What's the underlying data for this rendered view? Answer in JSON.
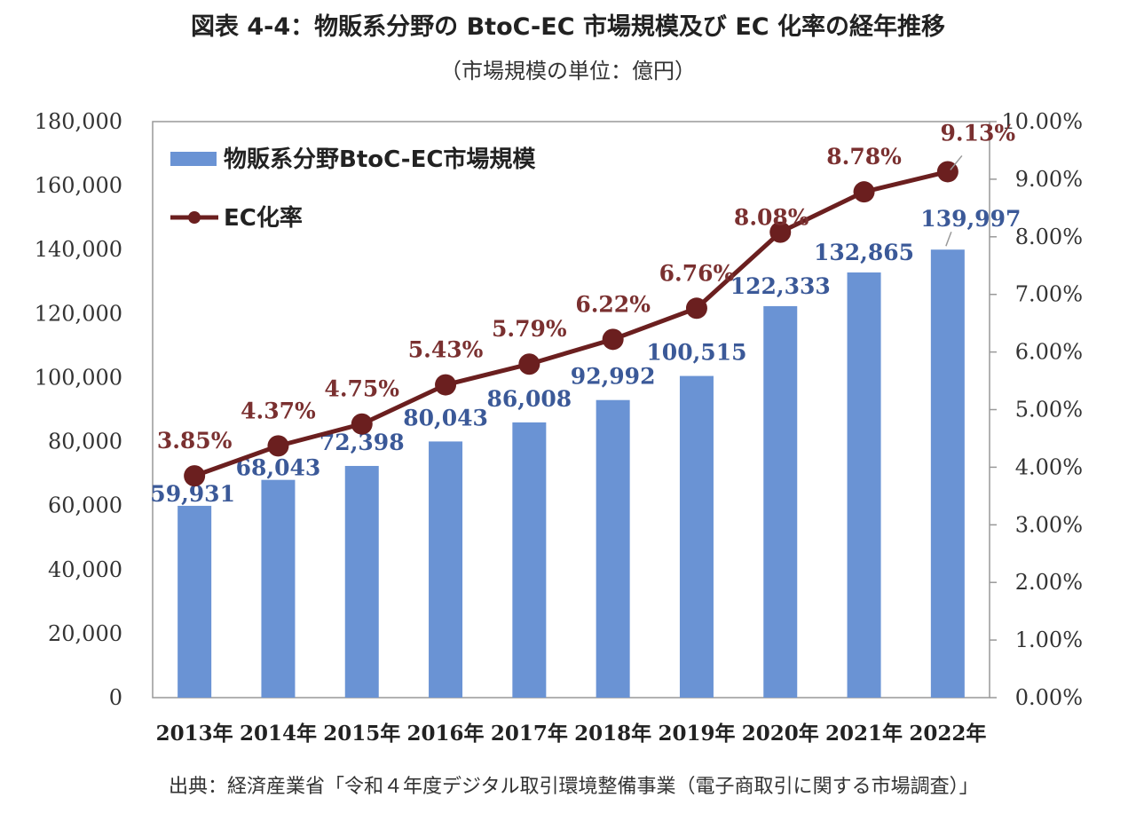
{
  "title": "図表 4-4：物販系分野の BtoC-EC 市場規模及び EC 化率の経年推移",
  "subtitle": "（市場規模の単位：億円）",
  "source": "出典：経済産業省「令和４年度デジタル取引環境整備事業（電子商取引に関する市場調査）」",
  "chart_data": {
    "type": "bar",
    "categories": [
      "2013年",
      "2014年",
      "2015年",
      "2016年",
      "2017年",
      "2018年",
      "2019年",
      "2020年",
      "2021年",
      "2022年"
    ],
    "series": [
      {
        "name": "物販系分野BtoC-EC市場規模",
        "type": "bar",
        "axis": "left",
        "color": "#6a93d4",
        "label_color": "#3b5998",
        "values": [
          59931,
          68043,
          72398,
          80043,
          86008,
          92992,
          100515,
          122333,
          132865,
          139997
        ],
        "labels": [
          "59,931",
          "68,043",
          "72,398",
          "80,043",
          "86,008",
          "92,992",
          "100,515",
          "122,333",
          "132,865",
          "139,997"
        ]
      },
      {
        "name": "EC化率",
        "type": "line",
        "axis": "right",
        "color": "#6b1f1f",
        "label_color": "#7a3030",
        "values": [
          3.85,
          4.37,
          4.75,
          5.43,
          5.79,
          6.22,
          6.76,
          8.08,
          8.78,
          9.13
        ],
        "labels": [
          "3.85%",
          "4.37%",
          "4.75%",
          "5.43%",
          "5.79%",
          "6.22%",
          "6.76%",
          "8.08%",
          "8.78%",
          "9.13%"
        ]
      }
    ],
    "y_left": {
      "range": [
        0,
        180000
      ],
      "ticks": [
        "0",
        "20,000",
        "40,000",
        "60,000",
        "80,000",
        "100,000",
        "120,000",
        "140,000",
        "160,000",
        "180,000"
      ]
    },
    "y_right": {
      "range": [
        0,
        10
      ],
      "ticks": [
        "0.00%",
        "1.00%",
        "2.00%",
        "3.00%",
        "4.00%",
        "5.00%",
        "6.00%",
        "7.00%",
        "8.00%",
        "9.00%",
        "10.00%"
      ]
    },
    "grid": false,
    "legend": "top-left"
  }
}
